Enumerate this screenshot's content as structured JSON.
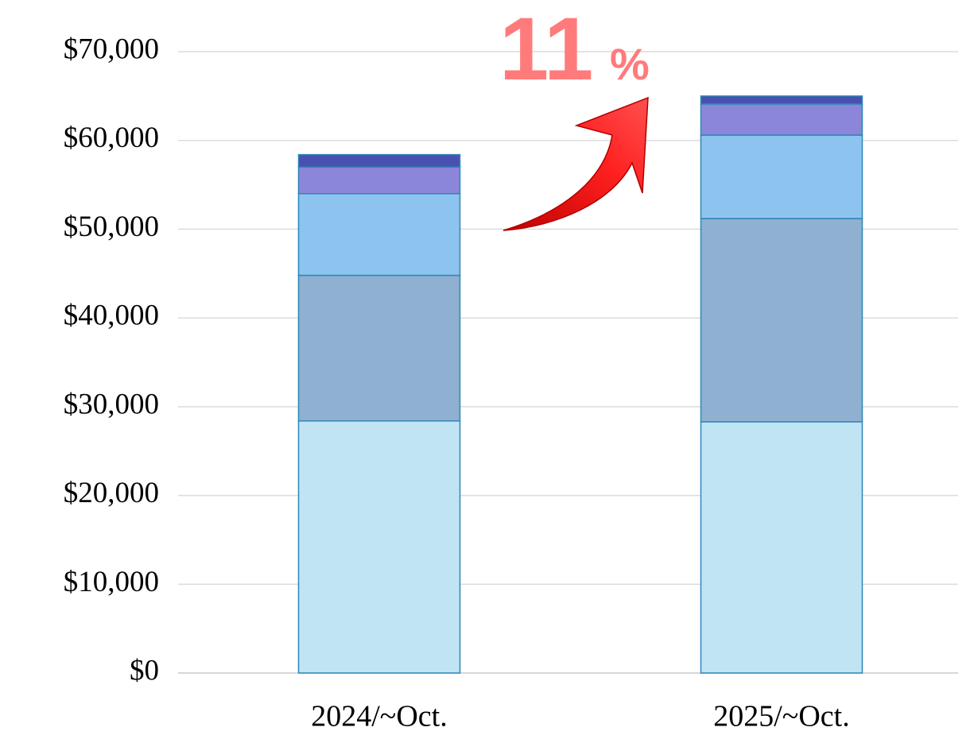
{
  "chart_data": {
    "type": "stacked_bar",
    "annotation": [
      "11",
      "%"
    ],
    "categories": [
      "2024/~Oct.",
      "2025/~Oct."
    ],
    "series": [
      {
        "color": "#c1e4f5",
        "values": [
          28400,
          28300
        ]
      },
      {
        "color": "#8fb0d0",
        "values": [
          16400,
          22900
        ]
      },
      {
        "color": "#8dc4ef",
        "values": [
          9200,
          9400
        ]
      },
      {
        "color": "#8b86d9",
        "values": [
          3000,
          3500
        ]
      },
      {
        "color": "#4a50b0",
        "values": [
          1400,
          900
        ]
      }
    ],
    "ylim": [
      0,
      70000
    ],
    "yticks": [
      {
        "value": 0,
        "label": "$0"
      },
      {
        "value": 10000,
        "label": "$10,000"
      },
      {
        "value": 20000,
        "label": "$20,000"
      },
      {
        "value": 30000,
        "label": "$30,000"
      },
      {
        "value": 40000,
        "label": "$40,000"
      },
      {
        "value": 50000,
        "label": "$50,000"
      },
      {
        "value": 60000,
        "label": "$60,000"
      },
      {
        "value": 70000,
        "label": "$70,000"
      }
    ],
    "grid": true
  }
}
